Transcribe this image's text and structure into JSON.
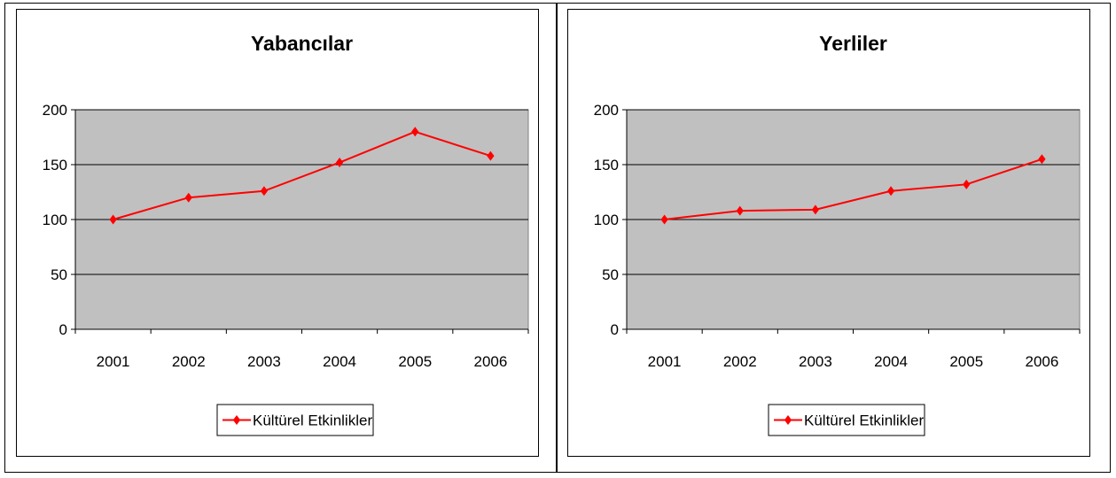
{
  "chart_data": [
    {
      "type": "line",
      "title": "Yabancılar",
      "categories": [
        "2001",
        "2002",
        "2003",
        "2004",
        "2005",
        "2006"
      ],
      "series": [
        {
          "name": "Kültürel Etkinlikler",
          "values": [
            100,
            120,
            126,
            152,
            180,
            158
          ],
          "color": "#ff0000"
        }
      ],
      "ylim": [
        0,
        200
      ],
      "yticks": [
        0,
        50,
        100,
        150,
        200
      ],
      "xlabel": "",
      "ylabel": "",
      "grid": true,
      "plot_background": "#c0c0c0",
      "legend_position": "bottom"
    },
    {
      "type": "line",
      "title": "Yerliler",
      "categories": [
        "2001",
        "2002",
        "2003",
        "2004",
        "2005",
        "2006"
      ],
      "series": [
        {
          "name": "Kültürel Etkinlikler",
          "values": [
            100,
            108,
            109,
            126,
            132,
            155
          ],
          "color": "#ff0000"
        }
      ],
      "ylim": [
        0,
        200
      ],
      "yticks": [
        0,
        50,
        100,
        150,
        200
      ],
      "xlabel": "",
      "ylabel": "",
      "grid": true,
      "plot_background": "#c0c0c0",
      "legend_position": "bottom"
    }
  ]
}
